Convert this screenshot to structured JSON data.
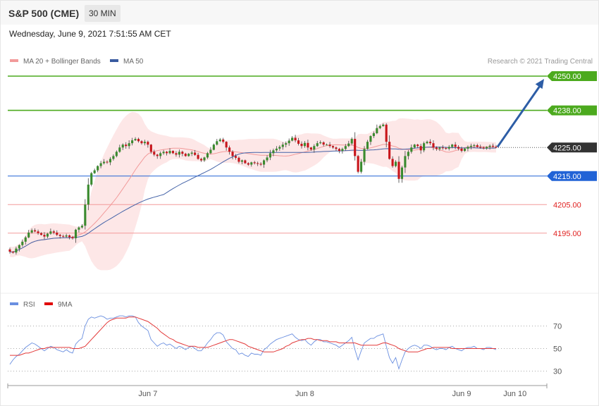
{
  "header": {
    "title": "S&P 500 (CME)",
    "timeframe": "30 MIN"
  },
  "datetime": "Wednesday, June 9, 2021 7:51:55 AM CET",
  "legend": {
    "ma20": "MA 20 + Bollinger Bands",
    "ma50": "MA 50",
    "credit": "Research © 2021 Trading Central"
  },
  "rsi_legend": {
    "rsi": "RSI",
    "ma9": "9MA"
  },
  "colors": {
    "up": "#3a8a2e",
    "down": "#c8151b",
    "band": "#fde3e3",
    "ma20": "#f29a9a",
    "ma50": "#4463a8",
    "green_level": "#4caa1e",
    "blue_level": "#2163d6",
    "red_level": "#f39a9a",
    "arrow": "#2d5da6",
    "rsi": "#6a8fe0",
    "rsi_ma": "#e33a3a",
    "current": "#333333"
  },
  "chart_data": [
    {
      "type": "candlestick",
      "title": "S&P 500 (CME)",
      "timeframe": "30 MIN",
      "x_labels": [
        "Jun 7",
        "Jun 8",
        "Jun 9",
        "Jun 10"
      ],
      "ylim": [
        4182,
        4260
      ],
      "levels": [
        {
          "value": 4250.0,
          "label": "4250.00",
          "kind": "resistance",
          "color": "#4caa1e",
          "tag": true
        },
        {
          "value": 4238.0,
          "label": "4238.00",
          "kind": "resistance",
          "color": "#4caa1e",
          "tag": true
        },
        {
          "value": 4225.0,
          "label": "4225.00",
          "kind": "current",
          "color": "#333333",
          "tag": true
        },
        {
          "value": 4215.0,
          "label": "4215.00",
          "kind": "pivot",
          "color": "#2163d6",
          "tag": true
        },
        {
          "value": 4205.0,
          "label": "4205.00",
          "kind": "support",
          "color": "#e0201f",
          "tag": false
        },
        {
          "value": 4195.0,
          "label": "4195.00",
          "kind": "support",
          "color": "#e0201f",
          "tag": false
        }
      ],
      "target_arrow": {
        "from": 4225.2,
        "to": 4249.0
      },
      "closes": [
        4188.5,
        4188.2,
        4189.6,
        4190.8,
        4192.0,
        4193.5,
        4195.2,
        4196.0,
        4195.6,
        4195.0,
        4194.4,
        4193.8,
        4194.8,
        4195.6,
        4195.2,
        4194.4,
        4194.0,
        4193.8,
        4194.2,
        4193.6,
        4193.2,
        4196.2,
        4197.0,
        4197.6,
        4205.0,
        4212.0,
        4216.0,
        4217.0,
        4218.5,
        4219.5,
        4220.0,
        4219.8,
        4221.0,
        4222.0,
        4223.5,
        4225.0,
        4226.0,
        4225.5,
        4226.5,
        4227.5,
        4228.0,
        4227.2,
        4226.5,
        4227.0,
        4226.0,
        4223.5,
        4222.5,
        4222.0,
        4223.0,
        4223.5,
        4223.0,
        4223.8,
        4223.0,
        4222.5,
        4223.5,
        4222.8,
        4222.0,
        4222.8,
        4223.2,
        4222.4,
        4221.0,
        4220.5,
        4221.5,
        4223.0,
        4224.2,
        4226.0,
        4227.2,
        4227.8,
        4227.0,
        4225.0,
        4223.5,
        4222.0,
        4221.4,
        4220.0,
        4220.5,
        4219.5,
        4219.0,
        4219.8,
        4219.5,
        4219.3,
        4219.0,
        4220.5,
        4221.5,
        4223.0,
        4224.0,
        4224.6,
        4225.2,
        4226.0,
        4226.5,
        4227.4,
        4228.4,
        4227.5,
        4226.3,
        4225.5,
        4226.6,
        4225.0,
        4224.3,
        4225.5,
        4226.5,
        4226.8,
        4226.0,
        4226.0,
        4225.5,
        4225.0,
        4224.5,
        4223.8,
        4224.5,
        4225.5,
        4226.4,
        4228.0,
        4222.0,
        4216.5,
        4220.0,
        4224.5,
        4227.0,
        4229.0,
        4230.0,
        4231.8,
        4232.5,
        4233.0,
        4227.0,
        4221.0,
        4218.5,
        4220.0,
        4214.0,
        4218.0,
        4222.0,
        4223.5,
        4225.0,
        4226.0,
        4225.5,
        4224.0,
        4226.5,
        4227.0,
        4226.5,
        4225.0,
        4224.5,
        4225.0,
        4224.8,
        4224.6,
        4225.2,
        4226.0,
        4225.2,
        4224.6,
        4223.8,
        4224.6,
        4225.2,
        4225.6,
        4225.8,
        4225.2,
        4225.0,
        4224.7,
        4225.2,
        4225.6,
        4225.3,
        4225.0
      ]
    },
    {
      "type": "line",
      "title": "RSI",
      "series": [
        {
          "name": "RSI"
        },
        {
          "name": "9MA"
        }
      ],
      "ylim": [
        22,
        80
      ],
      "y_ticks": [
        30,
        50,
        70
      ],
      "guides": [
        30,
        50,
        70
      ],
      "rsi": [
        36,
        40,
        43,
        45,
        48,
        51,
        53,
        55,
        54,
        52,
        50,
        48,
        50,
        52,
        51,
        49,
        48,
        47,
        49,
        47,
        46,
        54,
        57,
        59,
        70,
        76,
        78,
        77,
        78,
        79,
        78,
        76,
        77,
        77,
        78,
        79,
        79,
        78,
        79,
        79,
        78,
        73,
        70,
        68,
        66,
        58,
        55,
        52,
        54,
        55,
        53,
        54,
        52,
        50,
        52,
        51,
        49,
        51,
        52,
        50,
        48,
        48,
        51,
        55,
        58,
        62,
        64,
        64,
        62,
        56,
        53,
        50,
        49,
        45,
        46,
        44,
        43,
        46,
        45,
        45,
        44,
        49,
        51,
        54,
        56,
        58,
        59,
        60,
        61,
        62,
        63,
        60,
        58,
        57,
        58,
        55,
        53,
        56,
        58,
        58,
        56,
        56,
        55,
        54,
        53,
        51,
        53,
        55,
        57,
        60,
        49,
        40,
        48,
        55,
        57,
        59,
        59,
        61,
        62,
        63,
        52,
        42,
        37,
        42,
        32,
        40,
        47,
        50,
        52,
        53,
        52,
        50,
        53,
        53,
        52,
        50,
        49,
        50,
        50,
        49,
        51,
        52,
        50,
        49,
        48,
        50,
        51,
        51,
        52,
        50,
        50,
        49,
        51,
        51,
        50,
        49
      ],
      "rsi_ma": [
        44,
        44,
        44,
        44,
        45,
        46,
        46,
        47,
        48,
        49,
        50,
        50,
        51,
        51,
        51,
        51,
        51,
        51,
        51,
        51,
        50,
        50,
        50,
        51,
        52,
        55,
        58,
        61,
        64,
        67,
        70,
        73,
        75,
        76,
        77,
        77,
        77,
        77,
        78,
        78,
        78,
        77,
        76,
        75,
        74,
        72,
        70,
        68,
        65,
        63,
        61,
        59,
        58,
        56,
        55,
        54,
        53,
        52,
        52,
        52,
        51,
        51,
        51,
        51,
        52,
        53,
        54,
        55,
        56,
        57,
        58,
        58,
        57,
        56,
        55,
        54,
        52,
        51,
        50,
        49,
        48,
        47,
        47,
        47,
        47,
        48,
        49,
        50,
        52,
        53,
        55,
        56,
        57,
        58,
        58,
        59,
        59,
        58,
        58,
        57,
        57,
        57,
        56,
        56,
        56,
        55,
        55,
        55,
        55,
        55,
        55,
        54,
        53,
        53,
        53,
        53,
        53,
        53,
        54,
        55,
        55,
        54,
        53,
        52,
        50,
        49,
        48,
        47,
        47,
        47,
        47,
        48,
        49,
        50,
        50,
        51,
        51,
        51,
        51,
        51,
        51,
        50,
        50,
        50,
        50,
        50,
        50,
        50,
        50,
        50,
        50,
        50,
        50,
        50,
        50,
        50
      ]
    }
  ]
}
